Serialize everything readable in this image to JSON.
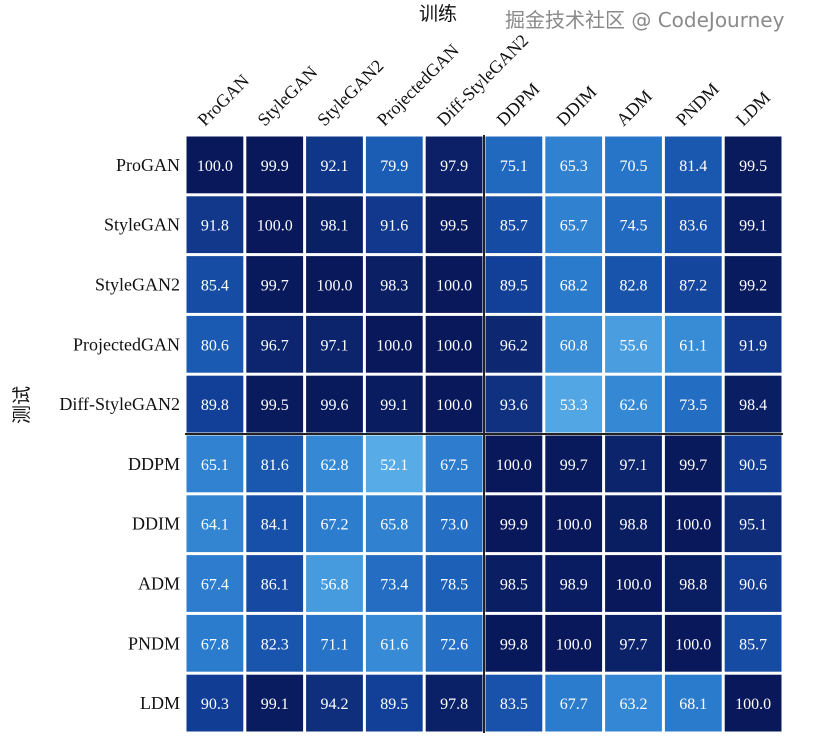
{
  "chart_data": {
    "type": "heatmap",
    "title": "",
    "xlabel": "训练",
    "ylabel": "测试",
    "x_categories": [
      "ProGAN",
      "StyleGAN",
      "StyleGAN2",
      "ProjectedGAN",
      "Diff-StyleGAN2",
      "DDPM",
      "DDIM",
      "ADM",
      "PNDM",
      "LDM"
    ],
    "y_categories": [
      "ProGAN",
      "StyleGAN",
      "StyleGAN2",
      "ProjectedGAN",
      "Diff-StyleGAN2",
      "DDPM",
      "DDIM",
      "ADM",
      "PNDM",
      "LDM"
    ],
    "values": [
      [
        100.0,
        99.9,
        92.1,
        79.9,
        97.9,
        75.1,
        65.3,
        70.5,
        81.4,
        99.5
      ],
      [
        91.8,
        100.0,
        98.1,
        91.6,
        99.5,
        85.7,
        65.7,
        74.5,
        83.6,
        99.1
      ],
      [
        85.4,
        99.7,
        100.0,
        98.3,
        100.0,
        89.5,
        68.2,
        82.8,
        87.2,
        99.2
      ],
      [
        80.6,
        96.7,
        97.1,
        100.0,
        100.0,
        96.2,
        60.8,
        55.6,
        61.1,
        91.9
      ],
      [
        89.8,
        99.5,
        99.6,
        99.1,
        100.0,
        93.6,
        53.3,
        62.6,
        73.5,
        98.4
      ],
      [
        65.1,
        81.6,
        62.8,
        52.1,
        67.5,
        100.0,
        99.7,
        97.1,
        99.7,
        90.5
      ],
      [
        64.1,
        84.1,
        67.2,
        65.8,
        73.0,
        99.9,
        100.0,
        98.8,
        100.0,
        95.1
      ],
      [
        67.4,
        86.1,
        56.8,
        73.4,
        78.5,
        98.5,
        98.9,
        100.0,
        98.8,
        90.6
      ],
      [
        67.8,
        82.3,
        71.1,
        61.6,
        72.6,
        99.8,
        100.0,
        97.7,
        100.0,
        85.7
      ],
      [
        90.3,
        99.1,
        94.2,
        89.5,
        97.8,
        83.5,
        67.7,
        63.2,
        68.1,
        100.0
      ]
    ],
    "value_format": "0.0",
    "colormap": "Blues",
    "color_low": "#5aaee8",
    "color_high": "#08185a",
    "group_separator_after_index": 4,
    "grid": false,
    "legend": "none"
  },
  "watermark": "掘金技术社区 @ CodeJourney"
}
